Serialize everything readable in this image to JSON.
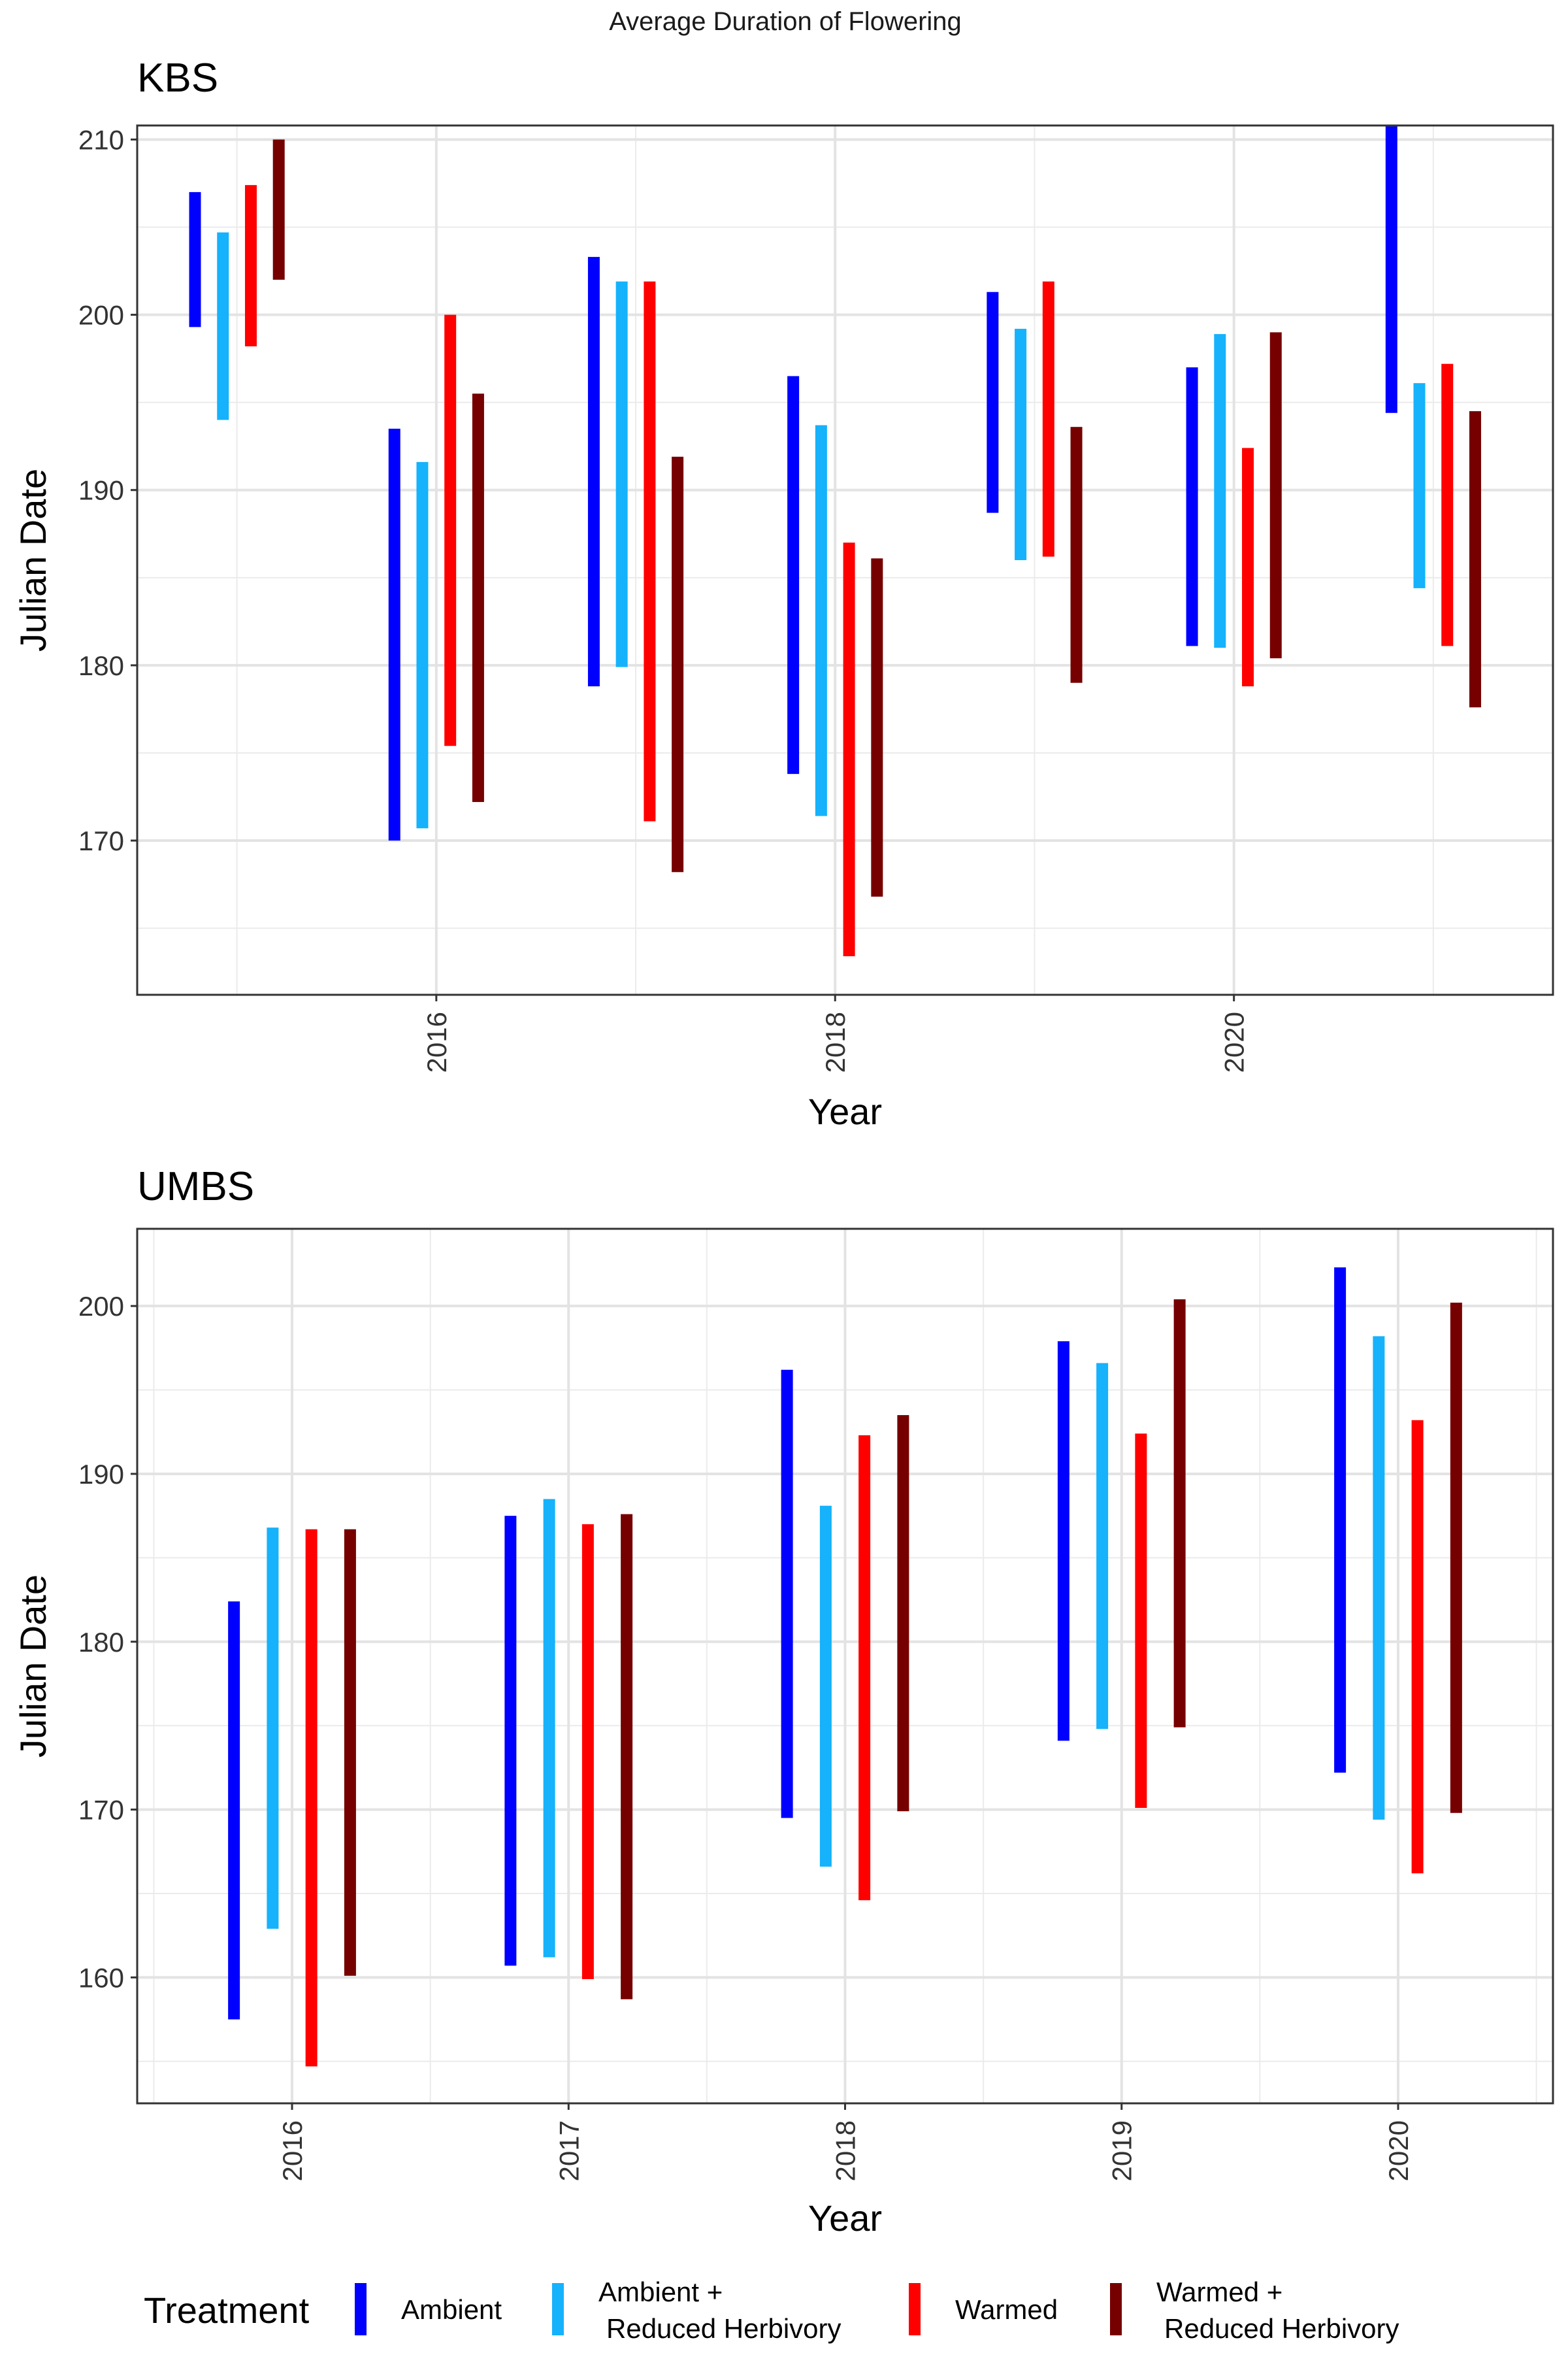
{
  "title": "Average Duration of Flowering",
  "legend": {
    "title": "Treatment",
    "position": "bottom",
    "entries": [
      {
        "lines": [
          "Ambient"
        ],
        "color": "#0000FF"
      },
      {
        "lines": [
          "Ambient +",
          "Reduced Herbivory"
        ],
        "color": "#16B2FB"
      },
      {
        "lines": [
          "Warmed"
        ],
        "color": "#FF0000"
      },
      {
        "lines": [
          "Warmed +",
          "Reduced Herbivory"
        ],
        "color": "#760000"
      }
    ]
  },
  "chart_data": [
    {
      "type": "bar",
      "subtype": "floating-range",
      "title": "KBS",
      "xlabel": "Year",
      "ylabel": "Julian Date",
      "xlim": [
        2014.5,
        2021.6
      ],
      "ylim": [
        161.2,
        210.8
      ],
      "yticks": [
        170,
        180,
        190,
        200,
        210
      ],
      "xticks": [
        2016,
        2018,
        2020
      ],
      "grid": true,
      "series": [
        {
          "name": "Ambient",
          "color": "#0000FF",
          "ranges": [
            {
              "x": 2015,
              "low": 199.3,
              "high": 207.0
            },
            {
              "x": 2016,
              "low": 170.0,
              "high": 193.5
            },
            {
              "x": 2017,
              "low": 178.8,
              "high": 203.3
            },
            {
              "x": 2018,
              "low": 173.8,
              "high": 196.5
            },
            {
              "x": 2019,
              "low": 188.7,
              "high": 201.3
            },
            {
              "x": 2020,
              "low": 181.1,
              "high": 197.0
            },
            {
              "x": 2021,
              "low": 194.4,
              "high": 211.1
            }
          ]
        },
        {
          "name": "Ambient + Reduced Herbivory",
          "color": "#16B2FB",
          "ranges": [
            {
              "x": 2015,
              "low": 194.0,
              "high": 204.7
            },
            {
              "x": 2016,
              "low": 170.7,
              "high": 191.6
            },
            {
              "x": 2017,
              "low": 179.9,
              "high": 201.9
            },
            {
              "x": 2018,
              "low": 171.4,
              "high": 193.7
            },
            {
              "x": 2019,
              "low": 186.0,
              "high": 199.2
            },
            {
              "x": 2020,
              "low": 181.0,
              "high": 198.9
            },
            {
              "x": 2021,
              "low": 184.4,
              "high": 196.1
            }
          ]
        },
        {
          "name": "Warmed",
          "color": "#FF0000",
          "ranges": [
            {
              "x": 2015,
              "low": 198.2,
              "high": 207.4
            },
            {
              "x": 2016,
              "low": 175.4,
              "high": 200.0
            },
            {
              "x": 2017,
              "low": 171.1,
              "high": 201.9
            },
            {
              "x": 2018,
              "low": 163.4,
              "high": 187.0
            },
            {
              "x": 2019,
              "low": 186.2,
              "high": 201.9
            },
            {
              "x": 2020,
              "low": 178.8,
              "high": 192.4
            },
            {
              "x": 2021,
              "low": 181.1,
              "high": 197.2
            }
          ]
        },
        {
          "name": "Warmed + Reduced Herbivory",
          "color": "#760000",
          "ranges": [
            {
              "x": 2015,
              "low": 202.0,
              "high": 210.0
            },
            {
              "x": 2016,
              "low": 172.2,
              "high": 195.5
            },
            {
              "x": 2017,
              "low": 168.2,
              "high": 191.9
            },
            {
              "x": 2018,
              "low": 166.8,
              "high": 186.1
            },
            {
              "x": 2019,
              "low": 179.0,
              "high": 193.6
            },
            {
              "x": 2020,
              "low": 180.4,
              "high": 199.0
            },
            {
              "x": 2021,
              "low": 177.6,
              "high": 194.5
            }
          ]
        }
      ]
    },
    {
      "type": "bar",
      "subtype": "floating-range",
      "title": "UMBS",
      "xlabel": "Year",
      "ylabel": "Julian Date",
      "xlim": [
        2015.44,
        2020.56
      ],
      "ylim": [
        152.5,
        204.6
      ],
      "yticks": [
        160,
        170,
        180,
        190,
        200
      ],
      "xticks": [
        2016,
        2017,
        2018,
        2019,
        2020
      ],
      "grid": true,
      "series": [
        {
          "name": "Ambient",
          "color": "#0000FF",
          "ranges": [
            {
              "x": 2016,
              "low": 157.5,
              "high": 182.4
            },
            {
              "x": 2017,
              "low": 160.7,
              "high": 187.5
            },
            {
              "x": 2018,
              "low": 169.5,
              "high": 196.2
            },
            {
              "x": 2019,
              "low": 174.1,
              "high": 197.9
            },
            {
              "x": 2020,
              "low": 172.2,
              "high": 202.3
            }
          ]
        },
        {
          "name": "Ambient + Reduced Herbivory",
          "color": "#16B2FB",
          "ranges": [
            {
              "x": 2016,
              "low": 162.9,
              "high": 186.8
            },
            {
              "x": 2017,
              "low": 161.2,
              "high": 188.5
            },
            {
              "x": 2018,
              "low": 166.6,
              "high": 188.1
            },
            {
              "x": 2019,
              "low": 174.8,
              "high": 196.6
            },
            {
              "x": 2020,
              "low": 169.4,
              "high": 198.2
            }
          ]
        },
        {
          "name": "Warmed",
          "color": "#FF0000",
          "ranges": [
            {
              "x": 2016,
              "low": 154.7,
              "high": 186.7
            },
            {
              "x": 2017,
              "low": 159.9,
              "high": 187.0
            },
            {
              "x": 2018,
              "low": 164.6,
              "high": 192.3
            },
            {
              "x": 2019,
              "low": 170.1,
              "high": 192.4
            },
            {
              "x": 2020,
              "low": 166.2,
              "high": 193.2
            }
          ]
        },
        {
          "name": "Warmed + Reduced Herbivory",
          "color": "#760000",
          "ranges": [
            {
              "x": 2016,
              "low": 160.1,
              "high": 186.7
            },
            {
              "x": 2017,
              "low": 158.7,
              "high": 187.6
            },
            {
              "x": 2018,
              "low": 169.9,
              "high": 193.5
            },
            {
              "x": 2019,
              "low": 174.9,
              "high": 200.4
            },
            {
              "x": 2020,
              "low": 169.8,
              "high": 200.2
            }
          ]
        }
      ]
    }
  ]
}
